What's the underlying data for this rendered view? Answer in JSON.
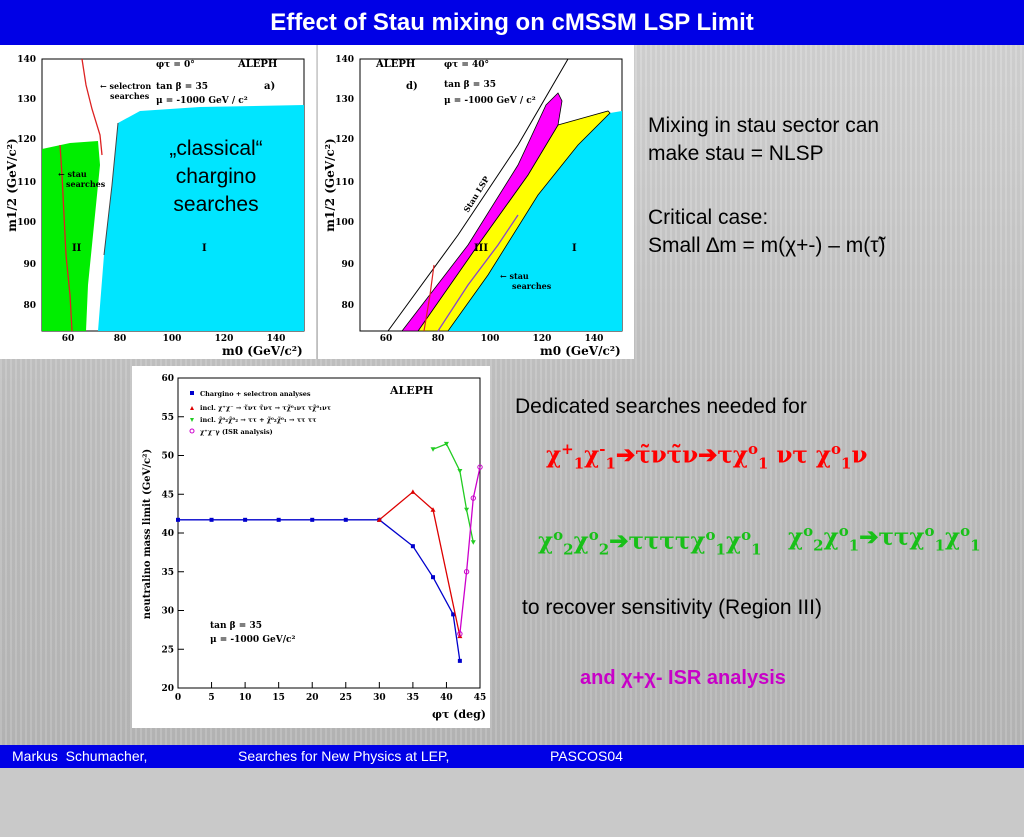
{
  "header": {
    "title": "Effect of Stau mixing on cMSSM LSP Limit"
  },
  "footer": {
    "author": "Markus  Schumacher,",
    "talk": "Searches for New Physics at LEP,",
    "conf": "PASCOS04"
  },
  "panel_a": {
    "ylabel": "m1/2 (GeV/c²)",
    "xlabel": "m0 (GeV/c²)",
    "yticks": [
      "140",
      "130",
      "120",
      "110",
      "100",
      "90",
      "80"
    ],
    "xticks": [
      "60",
      "80",
      "100",
      "120",
      "140"
    ],
    "phi": "φτ = 0°",
    "tanb": "tan β = 35",
    "mu": "μ = -1000 GeV / c²",
    "aleph": "ALEPH",
    "letter": "a)",
    "selectron": "← selectron",
    "selectron2": "searches",
    "stau": "← stau",
    "stau2": "searches",
    "region2": "II",
    "region1": "I",
    "classical1": "„classical“",
    "classical2": "chargino",
    "classical3": "searches"
  },
  "panel_d": {
    "ylabel": "m1/2 (GeV/c²)",
    "xlabel": "m0 (GeV/c²)",
    "yticks": [
      "140",
      "130",
      "120",
      "110",
      "100",
      "90",
      "80"
    ],
    "xticks": [
      "60",
      "80",
      "100",
      "120",
      "140"
    ],
    "phi": "φτ = 40°",
    "tanb": "tan β = 35",
    "mu": "μ = -1000 GeV / c²",
    "aleph": "ALEPH",
    "letter": "d)",
    "staulsp": "Stau LSP",
    "region3": "III",
    "region1": "I",
    "stau": "← stau",
    "stau2": "searches"
  },
  "text": {
    "mixing1": "Mixing in stau sector can",
    "mixing2": "make stau = NLSP",
    "critical1": "Critical case:",
    "critical2": "Small ∆m = m(χ+-) – m(τ̃)",
    "dedicated": "Dedicated searches needed for",
    "recover": "to recover sensitivity  (Region III)",
    "isr": "and χ+χ- ISR analysis"
  },
  "chart_data": {
    "type": "line",
    "title": "ALEPH",
    "xlabel": "φτ (deg)",
    "ylabel": "neutralino mass limit (GeV/c²)",
    "xlim": [
      0,
      45
    ],
    "ylim": [
      20,
      60
    ],
    "xticks": [
      "0",
      "5",
      "10",
      "15",
      "20",
      "25",
      "30",
      "35",
      "40",
      "45"
    ],
    "yticks": [
      "20",
      "25",
      "30",
      "35",
      "40",
      "45",
      "50",
      "55",
      "60"
    ],
    "legend": [
      "Chargino + selectron analyses",
      "incl. χ⁺χ⁻ → τ̃ντ τ̃ντ → τχ̃⁰₁ντ τχ̃⁰₁ντ",
      "incl. χ̃⁰₂χ̃⁰₂ → ττ + χ̃⁰₂χ̃⁰₁ → ττ ττ",
      "χ⁺χ⁻γ    (ISR analysis)"
    ],
    "annot1": "tan β = 35",
    "annot2": "μ = -1000 GeV/c²",
    "series": [
      {
        "name": "Chargino + selectron analyses",
        "color": "#0000cc",
        "x": [
          0,
          5,
          10,
          15,
          20,
          25,
          30,
          35,
          38,
          41,
          42
        ],
        "y": [
          41.7,
          41.7,
          41.7,
          41.7,
          41.7,
          41.7,
          41.7,
          38.3,
          34.3,
          29.5,
          23.5
        ]
      },
      {
        "name": "incl. χ⁺χ⁻",
        "color": "#dd0000",
        "x": [
          30,
          35,
          38,
          42
        ],
        "y": [
          41.7,
          45.3,
          43.0,
          26.7
        ]
      },
      {
        "name": "incl. χ̃⁰₂χ̃⁰₂",
        "color": "#22cc22",
        "x": [
          38,
          40,
          42,
          43,
          44
        ],
        "y": [
          50.8,
          51.5,
          48.0,
          43.0,
          38.8
        ]
      },
      {
        "name": "χ⁺χ⁻γ (ISR analysis)",
        "color": "#cc00cc",
        "x": [
          42,
          43,
          44,
          45
        ],
        "y": [
          27.0,
          35.0,
          44.5,
          48.5
        ]
      }
    ]
  },
  "colors": {
    "header": "#0000e6",
    "cyan": "#00e5ff",
    "green": "#00ee00",
    "yellow": "#ffff00",
    "magenta": "#ff00ff"
  }
}
